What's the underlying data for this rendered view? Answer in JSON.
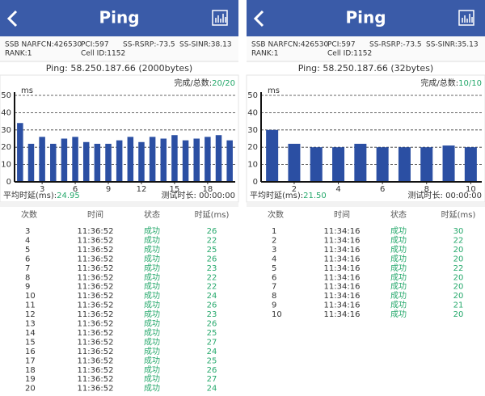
{
  "panels": [
    {
      "header": {
        "title": "Ping"
      },
      "info": [
        "SSB NARFCN:426530",
        "PCI:597",
        "SS-RSRP:-73.5",
        "SS-SINR:38.13",
        "RANK:1",
        "Cell ID:1152"
      ],
      "ping": "Ping: 58.250.187.66 (2000bytes)",
      "progress_label": "完成/总数:",
      "progress": "20/20",
      "chart": {
        "type": "bar",
        "y_unit": "ms",
        "x": [
          1,
          2,
          3,
          4,
          5,
          6,
          7,
          8,
          9,
          10,
          11,
          12,
          13,
          14,
          15,
          16,
          17,
          18,
          19,
          20
        ],
        "values": [
          34,
          22,
          26,
          22,
          25,
          26,
          23,
          22,
          22,
          24,
          26,
          23,
          26,
          25,
          27,
          24,
          25,
          26,
          27,
          24
        ],
        "xlim": [
          0.5,
          20.5
        ],
        "ylim": [
          0,
          50
        ],
        "yticks": [
          0,
          10,
          20,
          30,
          40,
          50
        ],
        "xticks": [
          3,
          6,
          9,
          12,
          15,
          18
        ],
        "color": "#2b4fa3",
        "grid": true
      },
      "avg_label": "平均时延(ms):",
      "avg": 24.95,
      "duration": "测试时长: 00:00:00",
      "table": {
        "columns": [
          "次数",
          "时间",
          "状态",
          "时延(ms)"
        ],
        "rows": [
          [
            3,
            "11:36:52",
            "成功",
            26
          ],
          [
            4,
            "11:36:52",
            "成功",
            22
          ],
          [
            5,
            "11:36:52",
            "成功",
            25
          ],
          [
            6,
            "11:36:52",
            "成功",
            26
          ],
          [
            7,
            "11:36:52",
            "成功",
            23
          ],
          [
            8,
            "11:36:52",
            "成功",
            22
          ],
          [
            9,
            "11:36:52",
            "成功",
            22
          ],
          [
            10,
            "11:36:52",
            "成功",
            24
          ],
          [
            11,
            "11:36:52",
            "成功",
            26
          ],
          [
            12,
            "11:36:52",
            "成功",
            23
          ],
          [
            13,
            "11:36:52",
            "成功",
            26
          ],
          [
            14,
            "11:36:52",
            "成功",
            25
          ],
          [
            15,
            "11:36:52",
            "成功",
            27
          ],
          [
            16,
            "11:36:52",
            "成功",
            24
          ],
          [
            17,
            "11:36:52",
            "成功",
            25
          ],
          [
            18,
            "11:36:52",
            "成功",
            26
          ],
          [
            19,
            "11:36:52",
            "成功",
            27
          ],
          [
            20,
            "11:36:52",
            "成功",
            24
          ]
        ]
      }
    },
    {
      "header": {
        "title": "Ping"
      },
      "info": [
        "SSB NARFCN:426530",
        "PCI:597",
        "SS-RSRP:-73.5",
        "SS-SINR:35.13",
        "RANK:1",
        "Cell ID:1152"
      ],
      "ping": "Ping: 58.250.187.66 (32bytes)",
      "progress_label": "完成/总数:",
      "progress": "10/10",
      "chart": {
        "type": "bar",
        "y_unit": "ms",
        "x": [
          1,
          2,
          3,
          4,
          5,
          6,
          7,
          8,
          9,
          10
        ],
        "values": [
          30,
          22,
          20,
          20,
          22,
          20,
          20,
          20,
          21,
          20
        ],
        "xlim": [
          0.5,
          10.5
        ],
        "ylim": [
          0,
          50
        ],
        "yticks": [
          0,
          10,
          20,
          30,
          40,
          50
        ],
        "xticks": [
          2,
          4,
          6,
          8,
          10
        ],
        "color": "#2b4fa3",
        "grid": true
      },
      "avg_label": "平均时延(ms):",
      "avg": 21.5,
      "duration": "测试时长: 00:00:00",
      "table": {
        "columns": [
          "次数",
          "时间",
          "状态",
          "时延(ms)"
        ],
        "rows": [
          [
            1,
            "11:34:16",
            "成功",
            30
          ],
          [
            2,
            "11:34:16",
            "成功",
            22
          ],
          [
            3,
            "11:34:16",
            "成功",
            20
          ],
          [
            4,
            "11:34:16",
            "成功",
            20
          ],
          [
            5,
            "11:34:16",
            "成功",
            22
          ],
          [
            6,
            "11:34:16",
            "成功",
            20
          ],
          [
            7,
            "11:34:16",
            "成功",
            20
          ],
          [
            8,
            "11:34:16",
            "成功",
            20
          ],
          [
            9,
            "11:34:16",
            "成功",
            21
          ],
          [
            10,
            "11:34:16",
            "成功",
            20
          ]
        ]
      }
    }
  ]
}
